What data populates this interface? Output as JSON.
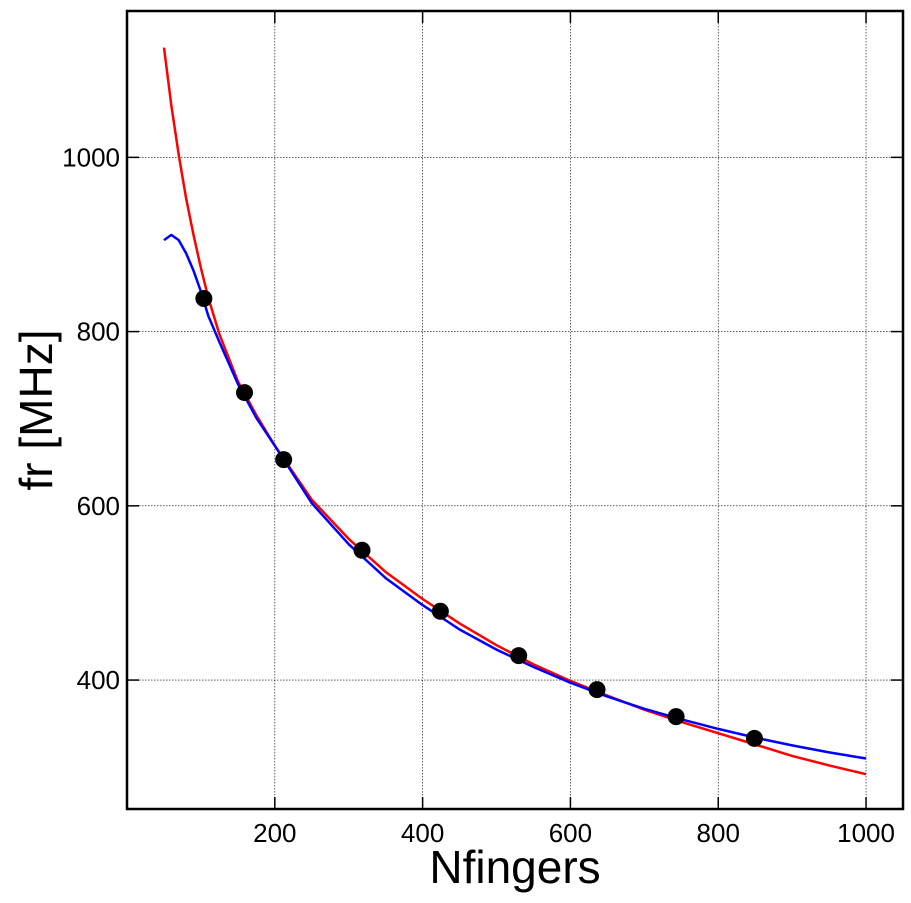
{
  "chart_data": {
    "type": "scatter",
    "title": "",
    "xlabel": "Nfingers",
    "ylabel": "fr [MHz]",
    "xlim": [
      0,
      1050
    ],
    "ylim": [
      252,
      1168
    ],
    "grid": true,
    "x_ticks": [
      200,
      400,
      600,
      800,
      1000
    ],
    "y_ticks": [
      400,
      600,
      800,
      1000
    ],
    "x_tick_labels": [
      "200",
      "400",
      "600",
      "800",
      "1000"
    ],
    "y_tick_labels": [
      "400",
      "600",
      "800",
      "1000"
    ],
    "points": {
      "x": [
        104,
        159,
        212,
        318,
        424,
        530,
        636,
        743,
        849
      ],
      "y": [
        838,
        730,
        653,
        549,
        479,
        428,
        389,
        358,
        333
      ]
    },
    "series": [
      {
        "color": "#ff0000",
        "x": [
          50,
          60,
          70,
          80,
          90,
          100,
          110,
          125,
          150,
          175,
          200,
          250,
          300,
          350,
          400,
          450,
          500,
          550,
          600,
          650,
          700,
          750,
          800,
          850,
          900,
          950,
          1000
        ],
        "y": [
          1126,
          1060,
          1003,
          953,
          911,
          873,
          839,
          797,
          743,
          704,
          669,
          607,
          562,
          524,
          493,
          465,
          440,
          418,
          399,
          382,
          366,
          352,
          339,
          326,
          313,
          302,
          292
        ]
      },
      {
        "color": "#0000ff",
        "x": [
          50,
          60,
          70,
          80,
          90,
          100,
          110,
          125,
          150,
          175,
          200,
          250,
          300,
          350,
          400,
          450,
          500,
          550,
          600,
          650,
          700,
          750,
          800,
          850,
          900,
          950,
          1000
        ],
        "y": [
          905,
          911,
          905,
          890,
          870,
          846,
          818,
          788,
          740,
          701,
          669,
          603,
          556,
          517,
          486,
          458,
          435,
          415,
          397,
          381,
          367,
          355,
          344,
          334,
          325,
          317,
          310
        ]
      }
    ]
  }
}
